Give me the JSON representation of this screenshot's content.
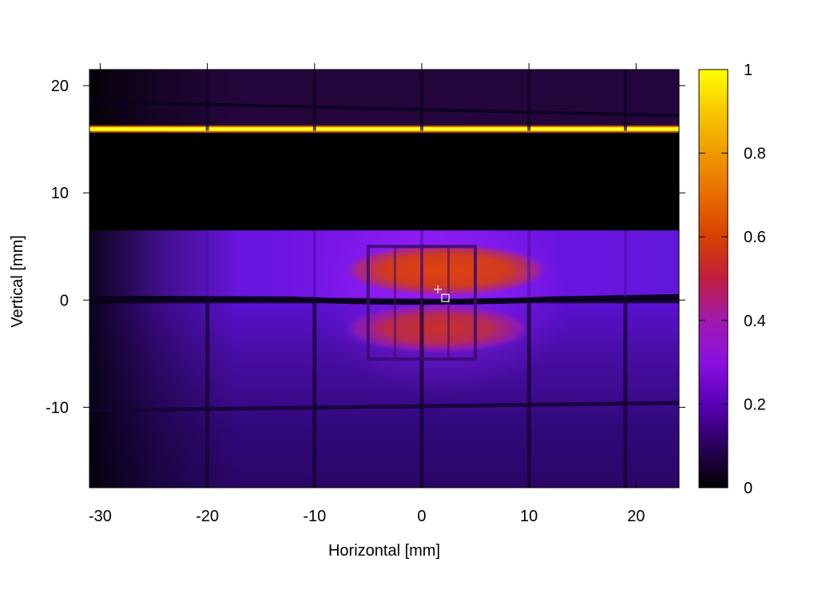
{
  "chart_data": {
    "type": "heatmap",
    "title": "",
    "xlabel": "Horizontal [mm]",
    "ylabel": "Vertical [mm]",
    "xlim": [
      -31,
      24
    ],
    "ylim": [
      -17.5,
      21.5
    ],
    "x_ticks": [
      -30,
      -20,
      -10,
      0,
      10,
      20
    ],
    "y_ticks": [
      -10,
      0,
      10,
      20
    ],
    "x_tick_labels": [
      "-30",
      "-20",
      "-10",
      "0",
      "10",
      "20"
    ],
    "y_tick_labels": [
      "-10",
      "0",
      "10",
      "20"
    ],
    "colorbar": {
      "range": [
        0,
        1
      ],
      "ticks": [
        0,
        0.2,
        0.4,
        0.6,
        0.8,
        1
      ],
      "tick_labels": [
        "0",
        "0.2",
        "0.4",
        "0.6",
        "0.8",
        "1"
      ],
      "colormap": [
        "#000000",
        "#2a005a",
        "#6a00c8",
        "#8a14d6",
        "#a81a8a",
        "#c81e32",
        "#d83a00",
        "#e06a00",
        "#f0a000",
        "#ffe000",
        "#ffff00"
      ]
    },
    "regions": [
      {
        "name": "bright-line",
        "x": [
          -31,
          24
        ],
        "y": [
          15.7,
          16.2
        ],
        "value": 0.95
      },
      {
        "name": "dark-band",
        "x": [
          -31,
          24
        ],
        "y": [
          6.5,
          15.5
        ],
        "value": 0.0
      },
      {
        "name": "upper-glow",
        "x": [
          -31,
          24
        ],
        "y": [
          0.2,
          6.5
        ],
        "value": 0.28
      },
      {
        "name": "lower-glow",
        "x": [
          -31,
          24
        ],
        "y": [
          -17.5,
          -0.3
        ],
        "value": 0.12
      },
      {
        "name": "upper-hotspot",
        "x": [
          -7.5,
          12
        ],
        "y": [
          0.3,
          5.3
        ],
        "value": 0.58
      },
      {
        "name": "lower-hotspot",
        "x": [
          -7.5,
          10.5
        ],
        "y": [
          -5,
          -0.3
        ],
        "value": 0.46
      }
    ],
    "markers": [
      {
        "shape": "plus",
        "x": 1.5,
        "y": 1.0
      },
      {
        "shape": "square",
        "x": 2.2,
        "y": 0.2
      }
    ]
  }
}
